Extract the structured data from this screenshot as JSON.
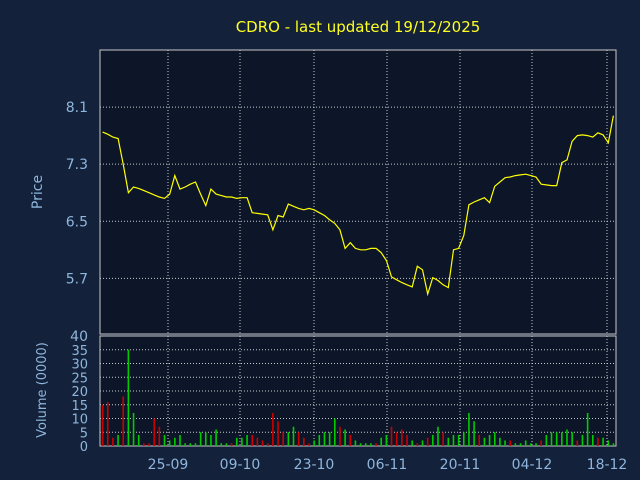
{
  "chart_data": [
    {
      "type": "line",
      "title": "CDRO - last updated 19/12/2025",
      "ylabel": "Price",
      "xlabel": "",
      "ylim": [
        4.92,
        8.9
      ],
      "y_ticks": [
        8.1,
        7.3,
        6.5,
        5.7
      ],
      "x_tick_labels": [
        "25-09",
        "09-10",
        "23-10",
        "06-11",
        "20-11",
        "04-12",
        "18-12"
      ],
      "colors": {
        "background": "#13213a",
        "plot": "#0c1628",
        "line": "#ffff00",
        "grid": "#c8c8c8",
        "title": "#ffff22",
        "text": "#8fb6dc"
      },
      "series": [
        {
          "values": [
            7.75,
            7.72,
            7.68,
            7.66,
            7.3,
            6.9,
            6.98,
            6.96,
            6.93,
            6.9,
            6.87,
            6.84,
            6.82,
            6.88,
            7.14,
            6.95,
            6.98,
            7.02,
            7.05,
            6.88,
            6.72,
            6.95,
            6.88,
            6.86,
            6.84,
            6.84,
            6.82,
            6.83,
            6.83,
            6.62,
            6.61,
            6.6,
            6.59,
            6.38,
            6.58,
            6.56,
            6.74,
            6.71,
            6.68,
            6.66,
            6.68,
            6.66,
            6.62,
            6.58,
            6.52,
            6.47,
            6.38,
            6.12,
            6.2,
            6.12,
            6.1,
            6.1,
            6.12,
            6.12,
            6.06,
            5.95,
            5.72,
            5.68,
            5.64,
            5.61,
            5.58,
            5.87,
            5.82,
            5.48,
            5.71,
            5.67,
            5.61,
            5.57,
            6.1,
            6.12,
            6.3,
            6.73,
            6.77,
            6.8,
            6.83,
            6.76,
            6.99,
            7.05,
            7.11,
            7.12,
            7.14,
            7.15,
            7.16,
            7.14,
            7.12,
            7.02,
            7.01,
            7.0,
            7.0,
            7.32,
            7.36,
            7.62,
            7.7,
            7.71,
            7.7,
            7.68,
            7.74,
            7.71,
            7.6,
            7.98
          ]
        }
      ]
    },
    {
      "type": "bar",
      "ylabel": "Volume (0000)",
      "ylim": [
        0,
        40
      ],
      "y_ticks": [
        0,
        5,
        10,
        15,
        20,
        25,
        30,
        35,
        40
      ],
      "colors": {
        "up": "#00cc00",
        "down": "#cc0000"
      },
      "series": [
        {
          "name": "",
          "values": [
            15,
            16,
            3,
            4,
            18,
            35,
            12,
            4,
            1,
            1,
            10,
            7,
            4,
            2,
            3,
            4,
            1,
            1,
            1,
            5,
            5,
            4,
            6,
            1,
            1,
            1,
            3,
            3,
            4,
            4,
            3,
            2,
            1,
            12,
            9,
            5,
            5,
            7,
            5,
            3,
            1,
            2,
            4,
            5,
            5,
            10,
            7,
            6,
            4,
            2,
            1,
            1,
            1,
            1,
            3,
            4,
            7,
            5,
            6,
            4,
            2,
            1,
            2,
            3,
            4,
            7,
            5,
            3,
            4,
            4,
            5,
            12,
            9,
            4,
            3,
            4,
            5,
            3,
            2,
            2,
            1,
            1,
            2,
            1,
            1,
            2,
            4,
            5,
            5,
            5,
            6,
            5,
            2,
            4,
            12,
            4,
            3,
            3,
            2,
            1
          ],
          "directions": [
            "d",
            "d",
            "d",
            "u",
            "d",
            "u",
            "u",
            "u",
            "d",
            "d",
            "d",
            "d",
            "u",
            "u",
            "u",
            "u",
            "u",
            "u",
            "u",
            "u",
            "u",
            "u",
            "u",
            "u",
            "u",
            "d",
            "u",
            "u",
            "u",
            "d",
            "d",
            "d",
            "d",
            "d",
            "d",
            "d",
            "u",
            "u",
            "d",
            "d",
            "d",
            "u",
            "u",
            "u",
            "u",
            "u",
            "d",
            "u",
            "d",
            "u",
            "u",
            "u",
            "u",
            "d",
            "u",
            "u",
            "d",
            "d",
            "d",
            "d",
            "u",
            "d",
            "u",
            "d",
            "u",
            "u",
            "d",
            "u",
            "u",
            "u",
            "u",
            "u",
            "u",
            "d",
            "u",
            "u",
            "u",
            "u",
            "u",
            "d",
            "u",
            "u",
            "u",
            "u",
            "u",
            "d",
            "u",
            "u",
            "u",
            "u",
            "u",
            "u",
            "d",
            "u",
            "u",
            "u",
            "d",
            "u",
            "u",
            "u"
          ]
        }
      ]
    }
  ]
}
